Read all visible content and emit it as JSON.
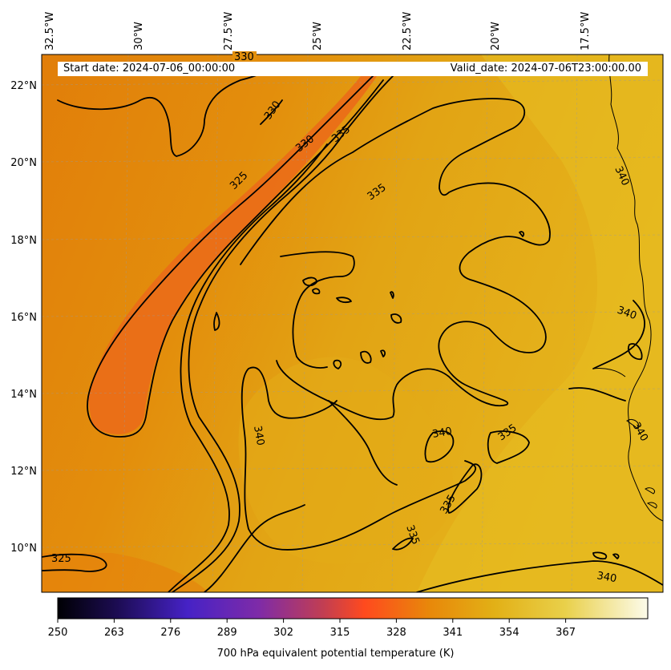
{
  "header": {
    "start_date": "Start date: 2024-07-06_00:00:00",
    "valid_date": "Valid_date: 2024-07-06T23:00:00.00"
  },
  "axes": {
    "lon_ticks": [
      "32.5°W",
      "30°W",
      "27.5°W",
      "25°W",
      "22.5°W",
      "20°W",
      "17.5°W"
    ],
    "lat_ticks": [
      "22°N",
      "20°N",
      "18°N",
      "16°N",
      "14°N",
      "12°N",
      "10°N"
    ]
  },
  "contour_labels": {
    "c330_top": "330",
    "c330_a": "330",
    "c330_b": "330",
    "c325_a": "325",
    "c325_b": "325",
    "c335_a": "335",
    "c335_b": "335",
    "c335_c": "335",
    "c335_d": "335",
    "c335_e": "335",
    "c340_a": "340",
    "c340_b": "340",
    "c340_c": "340",
    "c340_d": "340",
    "c340_e": "340",
    "c340_f": "340"
  },
  "colorbar": {
    "ticks": [
      "250",
      "263",
      "276",
      "289",
      "302",
      "315",
      "328",
      "341",
      "354",
      "367"
    ],
    "label": "700 hPa equivalent potential temperature (K)",
    "colors": [
      "#000004",
      "#1e0a5c",
      "#4a22c8",
      "#8a2f9a",
      "#d0403e",
      "#ff4a1c",
      "#e9840a",
      "#e3ac14",
      "#e9cf40",
      "#fbfae6"
    ]
  },
  "colors": {
    "field_warm": "#e4b018",
    "field_mid": "#e58a0a",
    "field_cool": "#ec6a18",
    "contour": "#000000"
  }
}
